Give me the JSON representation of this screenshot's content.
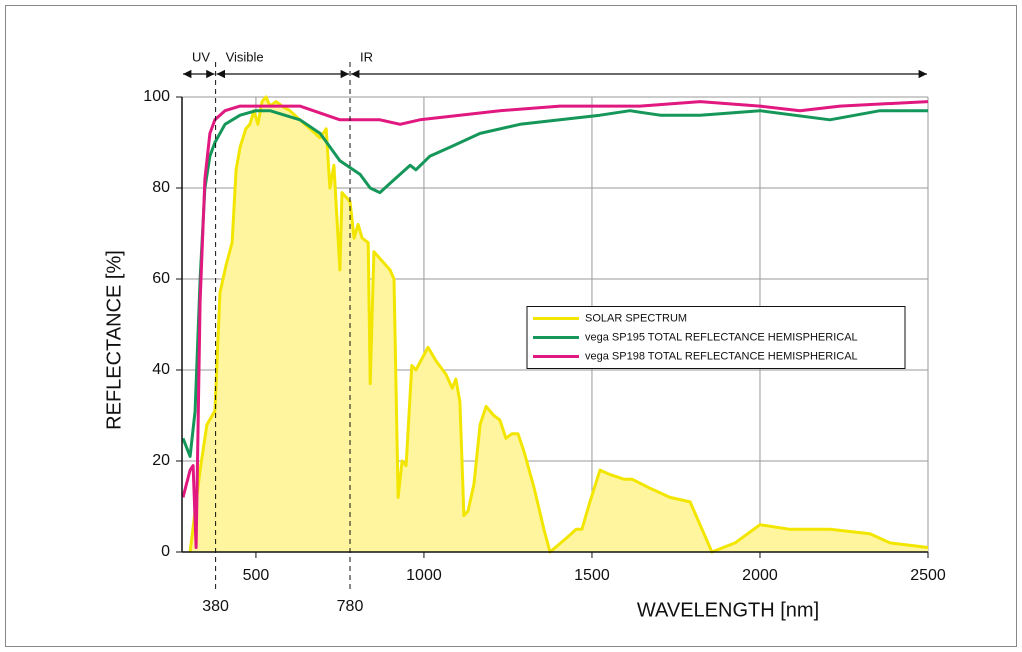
{
  "chart_data": {
    "type": "line",
    "xlabel": "WAVELENGTH [nm]",
    "ylabel": "REFLECTANCE [%]",
    "xlim": [
      280,
      2500
    ],
    "ylim": [
      0,
      100
    ],
    "xticks": [
      500,
      1000,
      1500,
      2000,
      2500
    ],
    "yticks": [
      0,
      20,
      40,
      60,
      80,
      100
    ],
    "grid": true,
    "legend_position": "center-right",
    "markers": [
      380,
      780
    ],
    "regions": [
      {
        "label": "UV",
        "from": 280,
        "to": 380
      },
      {
        "label": "Visible",
        "from": 380,
        "to": 780
      },
      {
        "label": "IR",
        "from": 780,
        "to": 2500
      }
    ],
    "series": [
      {
        "name": "SOLAR SPECTRUM",
        "color": "#f2e600",
        "fill": "#fff59e",
        "x": [
          304,
          334,
          354,
          378,
          393,
          411,
          429,
          441,
          453,
          470,
          482,
          494,
          506,
          518,
          530,
          542,
          560,
          578,
          601,
          631,
          661,
          691,
          709,
          720,
          732,
          750,
          756,
          780,
          792,
          804,
          816,
          834,
          840,
          851,
          899,
          911,
          923,
          935,
          947,
          964,
          976,
          1012,
          1036,
          1066,
          1084,
          1095,
          1107,
          1119,
          1131,
          1149,
          1167,
          1185,
          1208,
          1226,
          1244,
          1262,
          1280,
          1298,
          1328,
          1357,
          1375,
          1423,
          1453,
          1470,
          1494,
          1524,
          1554,
          1595,
          1619,
          1673,
          1732,
          1792,
          1857,
          1926,
          2000,
          2089,
          2208,
          2327,
          2387,
          2500
        ],
        "values": [
          0,
          18,
          28,
          31,
          57,
          63,
          68,
          84,
          89,
          93,
          94,
          97,
          94,
          99,
          100,
          98,
          99,
          98,
          97,
          95,
          93,
          91,
          93,
          80,
          85,
          62,
          79,
          77,
          69,
          72,
          69,
          68,
          37,
          66,
          62,
          60,
          12,
          20,
          19,
          41,
          40,
          45,
          42,
          39,
          36,
          38,
          33,
          8,
          9,
          15,
          28,
          32,
          30,
          29,
          25,
          26,
          26,
          22,
          14,
          5,
          0,
          3,
          5,
          5,
          11,
          18,
          17,
          16,
          16,
          14,
          12,
          11,
          0,
          2,
          6,
          5,
          5,
          4,
          2,
          1
        ]
      },
      {
        "name": "vega SP195 TOTAL REFLECTANCE HEMISPHERICAL",
        "color": "#15975a",
        "x": [
          283,
          304,
          319,
          334,
          348,
          363,
          378,
          408,
          453,
          500,
          542,
          631,
          691,
          750,
          810,
          840,
          869,
          899,
          959,
          976,
          1018,
          1078,
          1167,
          1286,
          1405,
          1524,
          1613,
          1703,
          1822,
          2000,
          2208,
          2357,
          2500
        ],
        "values": [
          25,
          21,
          31,
          60,
          80,
          87,
          90,
          94,
          96,
          97,
          97,
          95,
          92,
          86,
          83,
          80,
          79,
          81,
          85,
          84,
          87,
          89,
          92,
          94,
          95,
          96,
          97,
          96,
          96,
          97,
          95,
          97,
          97
        ]
      },
      {
        "name": "vega SP198 TOTAL REFLECTANCE HEMISPHERICAL",
        "color": "#e0187f",
        "x": [
          283,
          304,
          313,
          322,
          334,
          348,
          363,
          378,
          408,
          453,
          542,
          631,
          750,
          869,
          929,
          988,
          1107,
          1226,
          1405,
          1643,
          1822,
          2000,
          2119,
          2238,
          2500
        ],
        "values": [
          12,
          18,
          19,
          1,
          55,
          82,
          92,
          95,
          97,
          98,
          98,
          98,
          95,
          95,
          94,
          95,
          96,
          97,
          98,
          98,
          99,
          98,
          97,
          98,
          99
        ]
      }
    ]
  }
}
